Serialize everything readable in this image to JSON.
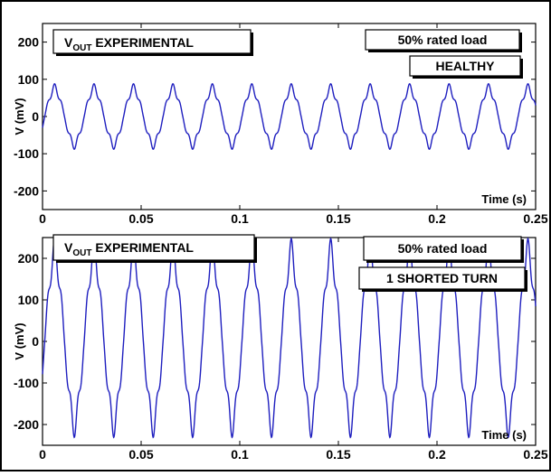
{
  "colors": {
    "trace": "#1f1fbf",
    "axis": "#000000",
    "background": "#ffffff"
  },
  "chart_data": [
    {
      "type": "line",
      "title_main": "V",
      "title_sub": "OUT",
      "title_rest": " EXPERIMENTAL",
      "load_label": "50% rated load",
      "condition_label": "HEALTHY",
      "xlabel": "Time (s)",
      "ylabel": "V (mV)",
      "xlim": [
        0,
        0.25
      ],
      "ylim": [
        -250,
        250
      ],
      "x_ticks": [
        "0",
        "0.05",
        "0.1",
        "0.15",
        "0.2",
        "0.25"
      ],
      "y_ticks": [
        "200",
        "100",
        "0",
        "-100",
        "-200"
      ],
      "grid": false,
      "series": [
        {
          "fundamental_hz": 50,
          "amplitude_mv": 80,
          "min_mv": -80,
          "max_mv": 80
        }
      ]
    },
    {
      "type": "line",
      "title_main": "V",
      "title_sub": "OUT",
      "title_rest": " EXPERIMENTAL",
      "load_label": "50% rated load",
      "condition_label": "1 SHORTED TURN",
      "xlabel": "Time (s)",
      "ylabel": "V (mV)",
      "xlim": [
        0,
        0.25
      ],
      "ylim": [
        -250,
        250
      ],
      "x_ticks": [
        "0",
        "0.05",
        "0.1",
        "0.15",
        "0.2",
        "0.25"
      ],
      "y_ticks": [
        "200",
        "100",
        "0",
        "-100",
        "-200"
      ],
      "grid": false,
      "series": [
        {
          "fundamental_hz": 50,
          "amplitude_mv": 220,
          "min_mv": -210,
          "max_mv": 225
        }
      ]
    }
  ]
}
